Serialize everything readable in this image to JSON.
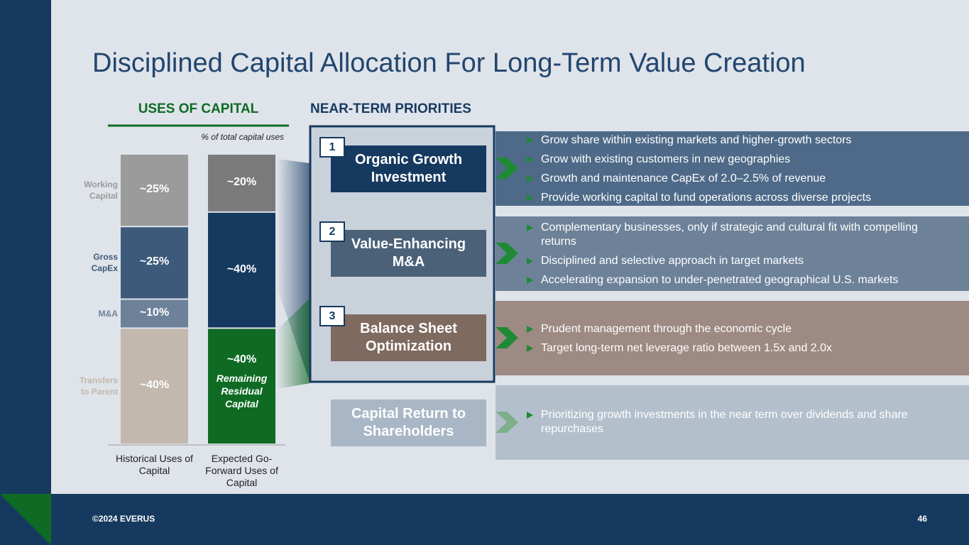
{
  "title": "Disciplined Capital Allocation For Long-Term Value Creation",
  "chart_data": {
    "type": "stacked-bar",
    "title": "USES OF CAPITAL",
    "subtitle": "% of total capital uses",
    "categories": [
      "Historical Uses of Capital",
      "Expected Go-Forward Uses of Capital"
    ],
    "series": [
      {
        "name": "Transfers to Parent",
        "colors": [
          "#c2b8ad",
          "#c2b8ad"
        ],
        "values": [
          40,
          null
        ],
        "value_labels": [
          "~40%",
          null
        ]
      },
      {
        "name": "Remaining Residual Capital",
        "colors": [
          "#0f6b24",
          "#0f6b24"
        ],
        "values": [
          null,
          40
        ],
        "value_labels": [
          null,
          "~40%"
        ]
      },
      {
        "name": "M&A",
        "colors": [
          "#6d8299",
          "#6d8299"
        ],
        "values": [
          10,
          null
        ],
        "value_labels": [
          "~10%",
          null
        ]
      },
      {
        "name": "Gross CapEx",
        "colors": [
          "#3d5a7b",
          "#163a5f"
        ],
        "values": [
          25,
          40
        ],
        "value_labels": [
          "~25%",
          "~40%"
        ]
      },
      {
        "name": "Working Capital",
        "colors": [
          "#9b9b9b",
          "#7a7a7a"
        ],
        "values": [
          25,
          20
        ],
        "value_labels": [
          "~25%",
          "~20%"
        ]
      }
    ]
  },
  "near_term_priorities": {
    "heading": "NEAR-TERM PRIORITIES",
    "items": [
      {
        "number": "1",
        "label": "Organic Growth Investment",
        "bullets": [
          "Grow share within existing markets and higher-growth sectors",
          "Grow with existing customers in new geographies",
          "Growth and maintenance CapEx of 2.0–2.5% of revenue",
          "Provide working capital to fund operations across diverse projects"
        ]
      },
      {
        "number": "2",
        "label": "Value-Enhancing M&A",
        "bullets": [
          "Complementary businesses, only if strategic and cultural fit with compelling returns",
          "Disciplined and selective approach in target markets",
          "Accelerating expansion to under-penetrated geographical U.S. markets"
        ]
      },
      {
        "number": "3",
        "label": "Balance Sheet Optimization",
        "bullets": [
          "Prudent management through the economic cycle",
          "Target long-term net leverage ratio between 1.5x and 2.0x"
        ]
      },
      {
        "label": "Capital Return to Shareholders",
        "bullets": [
          "Prioritizing growth investments in the near term over dividends and share repurchases"
        ]
      }
    ]
  },
  "footer": {
    "copyright": "©2024 EVERUS",
    "page": "46"
  }
}
